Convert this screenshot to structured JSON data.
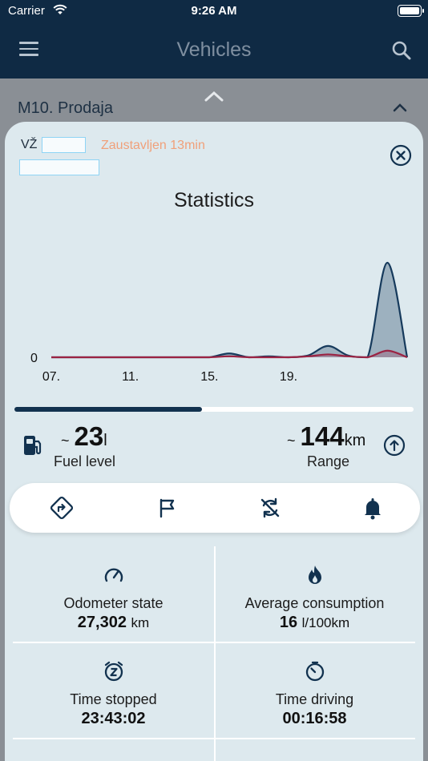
{
  "status_bar": {
    "carrier": "Carrier",
    "time": "9:26 AM"
  },
  "nav": {
    "title": "Vehicles"
  },
  "list": {
    "group_title": "M10. Prodaja"
  },
  "sheet": {
    "plate_prefix": "VŽ",
    "status": "Zaustavljen 13min",
    "stats_title": "Statistics"
  },
  "chart_data": {
    "type": "area",
    "x_tick_labels": [
      "07.",
      "11.",
      "15.",
      "19."
    ],
    "y_tick_labels": [
      "0"
    ],
    "series": [
      {
        "color": "#163a5c",
        "values": [
          0,
          0,
          0,
          0,
          0,
          0,
          0,
          0,
          0,
          0.04,
          0,
          0.01,
          0,
          0.02,
          0.12,
          0.02,
          0,
          1.0,
          0
        ]
      },
      {
        "color": "#9b2343",
        "values": [
          0,
          0,
          0,
          0,
          0,
          0,
          0,
          0,
          0,
          0.01,
          0,
          0,
          0,
          0.01,
          0.03,
          0.01,
          0,
          0.07,
          0
        ]
      }
    ]
  },
  "progress": {
    "percent": 47
  },
  "fuel": {
    "tilde": "~",
    "value": "23",
    "unit": "l",
    "label": "Fuel level"
  },
  "range": {
    "tilde": "~",
    "value": "144",
    "unit": "km",
    "label": "Range"
  },
  "actions": [
    {
      "icon": "route-icon"
    },
    {
      "icon": "flag-icon"
    },
    {
      "icon": "sync-off-icon"
    },
    {
      "icon": "bell-icon"
    }
  ],
  "stats": {
    "odometer": {
      "icon": "speedometer-icon",
      "label": "Odometer state",
      "value": "27,302",
      "unit": "km"
    },
    "consumption": {
      "icon": "flame-icon",
      "label": "Average consumption",
      "value": "16",
      "unit": "l/100km"
    },
    "time_stopped": {
      "icon": "alarm-z-icon",
      "label": "Time stopped",
      "value": "23:43:02"
    },
    "time_driving": {
      "icon": "timer-icon",
      "label": "Time driving",
      "value": "00:16:58"
    }
  },
  "colors": {
    "nav_bg": "#0f2a44",
    "sheet_bg": "#dde9ee",
    "accent": "#12324f",
    "status_orange": "#f0a07a",
    "series_red": "#9b2343"
  }
}
